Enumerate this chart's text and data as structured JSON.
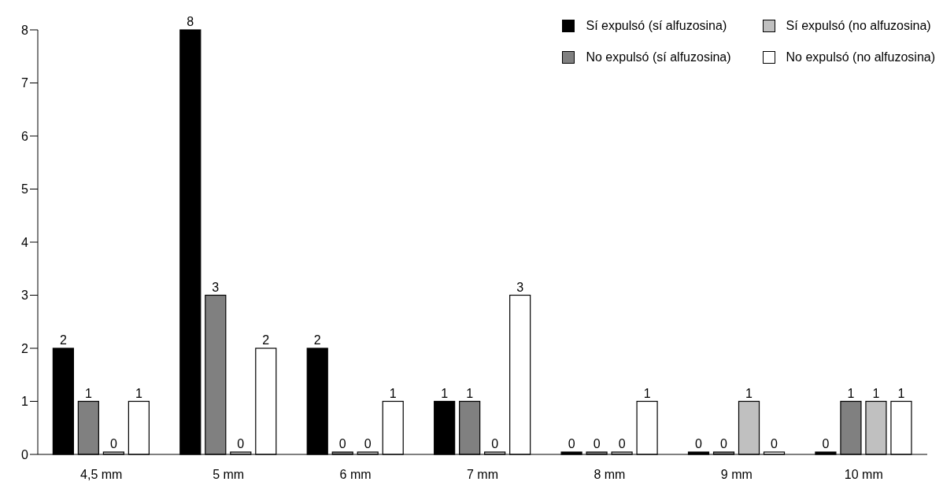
{
  "chart_data": {
    "type": "bar",
    "categories": [
      "4,5 mm",
      "5 mm",
      "6 mm",
      "7 mm",
      "8 mm",
      "9 mm",
      "10 mm"
    ],
    "series": [
      {
        "name": "Sí expulsó (sí alfuzosina)",
        "color": "#000000",
        "values": [
          2,
          8,
          2,
          1,
          0,
          0,
          0
        ]
      },
      {
        "name": "No expulsó (sí alfuzosina)",
        "color": "#808080",
        "values": [
          1,
          3,
          0,
          1,
          0,
          0,
          1
        ]
      },
      {
        "name": "Sí expulsó (no alfuzosina)",
        "color": "#c0c0c0",
        "values": [
          0,
          0,
          0,
          0,
          0,
          1,
          1
        ]
      },
      {
        "name": "No expulsó (no alfuzosina)",
        "color": "#ffffff",
        "values": [
          1,
          2,
          1,
          3,
          1,
          0,
          1
        ]
      }
    ],
    "ylim": [
      0,
      8
    ],
    "yticks": [
      0,
      1,
      2,
      3,
      4,
      5,
      6,
      7,
      8
    ],
    "grid": false,
    "legend": "top right",
    "data_labels": true
  }
}
